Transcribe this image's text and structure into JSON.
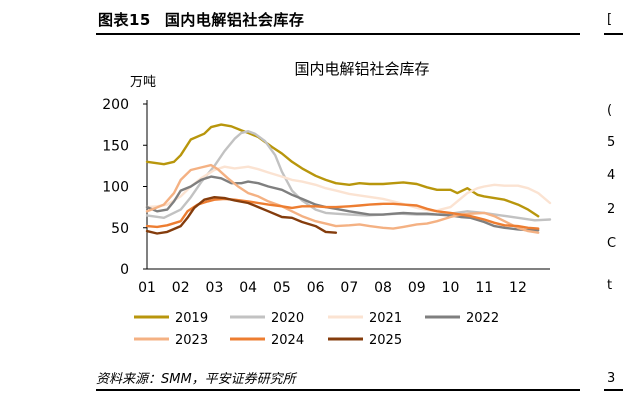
{
  "figure": {
    "label": "图表15",
    "title": "国内电解铝社会库存",
    "source": "资料来源：SMM，平安证券研究所"
  },
  "colors": {
    "2019": "#b8960c",
    "2020": "#c2c2c2",
    "2021": "#fbe3d2",
    "2022": "#7f7f7f",
    "2023": "#f4b183",
    "2024": "#ed7d31",
    "2025": "#843c0c"
  },
  "chart_data": {
    "type": "line",
    "title": "国内电解铝社会库存",
    "ylabel": "万吨",
    "xlabel": "",
    "ylim": [
      0,
      200
    ],
    "xlim": [
      1,
      12.95
    ],
    "yticks": [
      0,
      50,
      100,
      150,
      200
    ],
    "xticks": [
      "01",
      "02",
      "03",
      "04",
      "05",
      "06",
      "07",
      "08",
      "09",
      "10",
      "11",
      "12"
    ],
    "legend_position": "bottom",
    "grid": false,
    "series": [
      {
        "name": "2019",
        "color": "#b8960c",
        "width": 2.4,
        "x": [
          1.0,
          1.5,
          1.8,
          2.0,
          2.3,
          2.7,
          2.9,
          3.2,
          3.5,
          3.8,
          4.0,
          4.3,
          4.7,
          5.0,
          5.3,
          5.6,
          6.0,
          6.3,
          6.6,
          7.0,
          7.3,
          7.6,
          8.0,
          8.3,
          8.6,
          9.0,
          9.3,
          9.6,
          10.0,
          10.2,
          10.5,
          10.8,
          11.0,
          11.3,
          11.6,
          12.0,
          12.3,
          12.6
        ],
        "y": [
          130,
          127,
          130,
          138,
          157,
          164,
          172,
          175,
          173,
          168,
          165,
          160,
          148,
          140,
          130,
          122,
          113,
          108,
          104,
          102,
          104,
          103,
          103,
          104,
          105,
          103,
          99,
          96,
          96,
          92,
          98,
          90,
          88,
          86,
          84,
          78,
          72,
          64
        ]
      },
      {
        "name": "2020",
        "color": "#c2c2c2",
        "width": 2.4,
        "x": [
          1.0,
          1.5,
          2.0,
          2.3,
          2.6,
          3.0,
          3.3,
          3.6,
          3.8,
          4.0,
          4.2,
          4.5,
          4.8,
          5.0,
          5.3,
          5.6,
          6.0,
          6.3,
          6.6,
          7.0,
          7.5,
          8.0,
          8.5,
          9.0,
          9.5,
          10.0,
          10.5,
          11.0,
          11.5,
          12.0,
          12.5,
          12.95
        ],
        "y": [
          65,
          62,
          72,
          87,
          105,
          125,
          143,
          158,
          165,
          167,
          164,
          155,
          138,
          118,
          95,
          83,
          72,
          68,
          67,
          66,
          65,
          66,
          67,
          66,
          66,
          67,
          70,
          68,
          65,
          62,
          59,
          60
        ]
      },
      {
        "name": "2021",
        "color": "#fbe3d2",
        "width": 2.4,
        "x": [
          1.0,
          1.3,
          1.6,
          2.0,
          2.3,
          2.6,
          3.0,
          3.3,
          3.6,
          4.0,
          4.3,
          4.6,
          5.0,
          5.3,
          5.6,
          6.0,
          6.3,
          6.6,
          7.0,
          7.5,
          8.0,
          8.5,
          9.0,
          9.5,
          10.0,
          10.5,
          10.8,
          11.0,
          11.3,
          11.6,
          12.0,
          12.3,
          12.6,
          12.95
        ],
        "y": [
          75,
          76,
          78,
          88,
          100,
          110,
          120,
          124,
          122,
          124,
          121,
          117,
          112,
          108,
          106,
          102,
          98,
          95,
          91,
          88,
          85,
          80,
          74,
          70,
          75,
          92,
          98,
          100,
          102,
          101,
          101,
          98,
          92,
          80
        ]
      },
      {
        "name": "2022",
        "color": "#7f7f7f",
        "width": 2.4,
        "x": [
          1.0,
          1.3,
          1.6,
          1.8,
          2.0,
          2.3,
          2.6,
          2.9,
          3.2,
          3.5,
          3.8,
          4.0,
          4.3,
          4.6,
          5.0,
          5.3,
          5.6,
          6.0,
          6.3,
          6.6,
          7.0,
          7.3,
          7.6,
          8.0,
          8.3,
          8.6,
          9.0,
          9.3,
          9.6,
          10.0,
          10.3,
          10.6,
          11.0,
          11.3,
          11.6,
          12.0,
          12.3,
          12.6
        ],
        "y": [
          75,
          70,
          72,
          82,
          95,
          100,
          108,
          112,
          110,
          104,
          104,
          106,
          104,
          100,
          96,
          90,
          85,
          78,
          75,
          73,
          70,
          68,
          66,
          66,
          67,
          68,
          67,
          67,
          66,
          65,
          63,
          62,
          57,
          52,
          50,
          48,
          47,
          47
        ]
      },
      {
        "name": "2023",
        "color": "#f4b183",
        "width": 2.4,
        "x": [
          1.0,
          1.2,
          1.5,
          1.8,
          2.0,
          2.3,
          2.6,
          2.9,
          3.1,
          3.4,
          3.7,
          4.0,
          4.3,
          4.6,
          5.0,
          5.3,
          5.6,
          6.0,
          6.3,
          6.6,
          7.0,
          7.3,
          7.6,
          8.0,
          8.3,
          8.6,
          9.0,
          9.3,
          9.6,
          10.0,
          10.3,
          10.6,
          11.0,
          11.3,
          11.6,
          12.0,
          12.3,
          12.6
        ],
        "y": [
          70,
          73,
          78,
          92,
          108,
          120,
          123,
          126,
          121,
          110,
          100,
          92,
          88,
          82,
          76,
          70,
          64,
          58,
          55,
          52,
          53,
          54,
          52,
          50,
          49,
          51,
          54,
          55,
          58,
          63,
          66,
          67,
          68,
          64,
          58,
          50,
          46,
          44
        ]
      },
      {
        "name": "2024",
        "color": "#ed7d31",
        "width": 2.4,
        "x": [
          1.0,
          1.3,
          1.6,
          2.0,
          2.2,
          2.5,
          2.8,
          3.0,
          3.3,
          3.6,
          4.0,
          4.3,
          4.6,
          5.0,
          5.3,
          5.6,
          6.0,
          6.3,
          6.6,
          7.0,
          7.3,
          7.6,
          8.0,
          8.3,
          8.6,
          9.0,
          9.3,
          9.6,
          10.0,
          10.3,
          10.6,
          11.0,
          11.3,
          11.6,
          12.0,
          12.3,
          12.6
        ],
        "y": [
          52,
          51,
          53,
          58,
          70,
          78,
          82,
          84,
          85,
          84,
          82,
          80,
          78,
          76,
          74,
          76,
          76,
          75,
          75,
          76,
          77,
          78,
          79,
          79,
          78,
          77,
          73,
          70,
          68,
          66,
          64,
          60,
          56,
          53,
          52,
          50,
          49
        ]
      },
      {
        "name": "2025",
        "color": "#843c0c",
        "width": 2.4,
        "x": [
          1.0,
          1.3,
          1.6,
          2.0,
          2.2,
          2.4,
          2.7,
          3.0,
          3.3,
          3.6,
          4.0,
          4.3,
          4.6,
          5.0,
          5.3,
          5.6,
          6.0,
          6.3,
          6.6
        ],
        "y": [
          46,
          43,
          45,
          52,
          62,
          74,
          84,
          87,
          86,
          83,
          80,
          75,
          70,
          63,
          62,
          57,
          52,
          45,
          44
        ]
      }
    ]
  },
  "right_stub": {
    "top_glyph": "[",
    "bottom_glyph": "3",
    "fragments": [
      "(",
      "5",
      "4",
      "2",
      "C",
      "t"
    ]
  }
}
